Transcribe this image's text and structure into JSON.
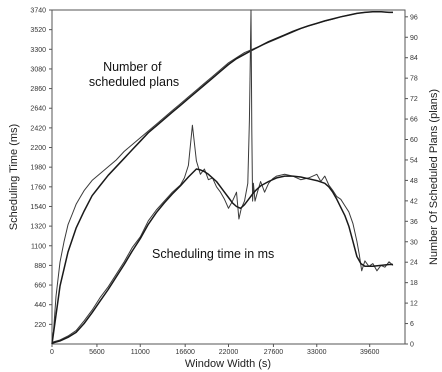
{
  "chart_data": {
    "type": "line",
    "title": "",
    "xlabel": "Window Width (s)",
    "ylabel": "Scheduling Time (ms)",
    "y2label": "Number Of Scheduled Plans (plans)",
    "x_ticks": [
      "0",
      "5600",
      "11000",
      "16600",
      "22000",
      "27600",
      "33000",
      "39600"
    ],
    "y_ticks": [
      "220",
      "440",
      "660",
      "880",
      "1100",
      "1320",
      "1540",
      "1760",
      "1980",
      "2200",
      "2420",
      "2640",
      "2860",
      "3080",
      "3300",
      "3520",
      "3740"
    ],
    "y2_ticks": [
      "0",
      "6",
      "12",
      "18",
      "24",
      "30",
      "36",
      "42",
      "48",
      "54",
      "60",
      "66",
      "72",
      "78",
      "84",
      "90",
      "96"
    ],
    "xlim": [
      0,
      44000
    ],
    "ylim": [
      0,
      3740
    ],
    "y2lim": [
      0,
      98
    ],
    "grid": false,
    "legend": "none",
    "annotations": [
      {
        "text_lines": [
          "Number of",
          "scheduled plans"
        ],
        "x": 12500,
        "y": 3200
      },
      {
        "text_lines": [
          "Scheduling time in ms"
        ],
        "x": 14000,
        "y": 1040
      }
    ],
    "series": [
      {
        "axis": "right",
        "style": "raw",
        "x": [
          0,
          200,
          500,
          1000,
          1500,
          2000,
          2500,
          3000,
          3500,
          4000,
          5000,
          6000,
          7000,
          8000,
          9000,
          10000,
          11000,
          12000,
          13000,
          14000,
          15000,
          16000,
          17000,
          18000,
          19000,
          20000,
          21000,
          22000,
          23000,
          24000,
          25000,
          26000,
          27000,
          28000,
          29000,
          30000,
          31000,
          32000,
          33000,
          34000,
          35000,
          36000,
          37000,
          38000,
          39000,
          40000,
          41000,
          42000,
          42500
        ],
        "y": [
          0,
          4,
          14,
          24,
          30,
          35,
          38,
          41,
          43,
          45,
          48,
          50,
          52,
          54,
          56.5,
          58.5,
          60.5,
          62.5,
          64.5,
          66.5,
          68.5,
          70.5,
          72.5,
          74.5,
          76.5,
          78.5,
          80.5,
          82.5,
          84,
          85.5,
          86.5,
          87.5,
          88.5,
          89.5,
          90.5,
          91.5,
          92.5,
          93.3,
          94,
          94.7,
          95.3,
          96,
          96.5,
          97,
          97.3,
          97.5,
          97.5,
          97.3,
          97.3
        ]
      },
      {
        "axis": "right",
        "style": "smooth",
        "x": [
          0,
          1000,
          2000,
          3000,
          4000,
          5000,
          6000,
          7000,
          8000,
          9000,
          10000,
          11000,
          12000,
          13000,
          14000,
          15000,
          16000,
          17000,
          18000,
          19000,
          20000,
          21000,
          22000,
          23000,
          24000,
          25000,
          26000,
          27000,
          28000,
          29000,
          30000,
          31000,
          32000,
          33000,
          34000,
          35000,
          36000,
          37000,
          38000,
          39000,
          40000,
          41000,
          42000,
          42500
        ],
        "y": [
          0,
          17,
          27,
          34,
          39,
          43.5,
          46.5,
          49.5,
          52,
          54.5,
          57,
          59.5,
          62,
          64,
          66,
          68,
          70,
          72,
          74,
          76,
          78,
          80,
          82,
          83.7,
          85,
          86.3,
          87.5,
          88.7,
          89.7,
          90.7,
          91.7,
          92.6,
          93.4,
          94.1,
          94.8,
          95.4,
          96,
          96.5,
          97,
          97.3,
          97.5,
          97.5,
          97.3,
          97.3
        ]
      },
      {
        "axis": "left",
        "style": "raw",
        "x": [
          0,
          1000,
          2000,
          3000,
          4000,
          5000,
          6000,
          7000,
          8000,
          9000,
          10000,
          11000,
          12000,
          13000,
          14000,
          15000,
          16000,
          16500,
          17000,
          17500,
          18000,
          18500,
          19000,
          19500,
          20000,
          20500,
          21000,
          21500,
          22000,
          22500,
          23000,
          23300,
          23600,
          24000,
          24400,
          24600,
          24800,
          24900,
          25000,
          25100,
          25300,
          25600,
          26000,
          26500,
          27000,
          27500,
          28000,
          29000,
          30000,
          31000,
          32000,
          33000,
          33500,
          34000,
          34500,
          35000,
          35500,
          36000,
          36500,
          37000,
          37500,
          38000,
          38300,
          38600,
          39000,
          39500,
          40000,
          40500,
          41000,
          41500,
          42000,
          42500
        ],
        "y": [
          20,
          45,
          90,
          150,
          260,
          380,
          520,
          640,
          780,
          920,
          1080,
          1200,
          1380,
          1500,
          1600,
          1700,
          1780,
          1860,
          2000,
          2450,
          2050,
          1900,
          1960,
          1840,
          1860,
          1760,
          1700,
          1620,
          1520,
          1600,
          1700,
          1400,
          1520,
          1600,
          1800,
          2500,
          3740,
          2400,
          1600,
          1800,
          1600,
          1700,
          1820,
          1700,
          1800,
          1850,
          1880,
          1900,
          1880,
          1840,
          1860,
          1900,
          1820,
          1880,
          1780,
          1720,
          1650,
          1620,
          1550,
          1480,
          1350,
          1150,
          1000,
          820,
          930,
          870,
          900,
          820,
          880,
          860,
          920,
          880
        ]
      },
      {
        "axis": "left",
        "style": "smooth",
        "x": [
          0,
          1000,
          2000,
          3000,
          4000,
          5000,
          6000,
          7000,
          8000,
          9000,
          10000,
          11000,
          12000,
          13000,
          14000,
          15000,
          16000,
          17000,
          18000,
          18500,
          19000,
          19500,
          20000,
          20500,
          21000,
          21500,
          22000,
          22500,
          23000,
          23500,
          24000,
          24500,
          25000,
          25500,
          26000,
          27000,
          28000,
          29000,
          30000,
          31000,
          32000,
          33000,
          34000,
          34500,
          35000,
          35500,
          36000,
          36500,
          37000,
          37500,
          38000,
          38500,
          39000,
          40000,
          41000,
          42000,
          42500
        ],
        "y": [
          10,
          35,
          75,
          130,
          230,
          350,
          480,
          610,
          750,
          890,
          1040,
          1180,
          1340,
          1470,
          1580,
          1680,
          1770,
          1870,
          1960,
          1950,
          1930,
          1900,
          1860,
          1820,
          1760,
          1700,
          1640,
          1580,
          1540,
          1520,
          1560,
          1620,
          1680,
          1730,
          1770,
          1820,
          1860,
          1880,
          1880,
          1870,
          1850,
          1830,
          1800,
          1760,
          1700,
          1620,
          1530,
          1440,
          1320,
          1150,
          980,
          900,
          870,
          870,
          880,
          890,
          890
        ]
      }
    ]
  }
}
